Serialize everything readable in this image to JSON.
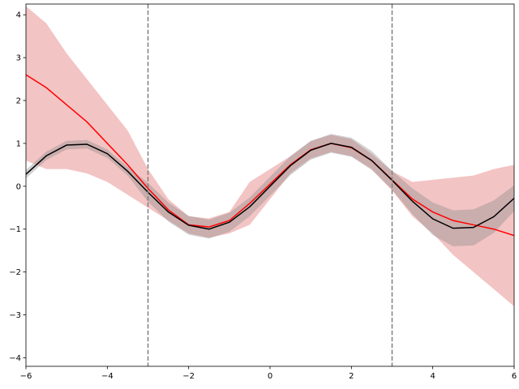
{
  "chart_data": {
    "type": "line",
    "x": [
      -6,
      -5.5,
      -5,
      -4.5,
      -4,
      -3.5,
      -3,
      -2.5,
      -2,
      -1.5,
      -1,
      -0.5,
      0,
      0.5,
      1,
      1.5,
      2,
      2.5,
      3,
      3.5,
      4,
      4.5,
      5,
      5.5,
      6
    ],
    "bands": [
      {
        "color": "#e88a8a",
        "opacity": 0.5,
        "upper": [
          4.2,
          3.8,
          3.1,
          2.5,
          1.9,
          1.3,
          0.4,
          -0.3,
          -0.7,
          -0.75,
          -0.6,
          0.1,
          0.4,
          0.7,
          1.05,
          1.2,
          1.1,
          0.75,
          0.35,
          0.1,
          0.15,
          0.2,
          0.25,
          0.4,
          0.5
        ],
        "lower": [
          0.6,
          0.4,
          0.4,
          0.3,
          0.1,
          -0.2,
          -0.5,
          -0.8,
          -1.1,
          -1.2,
          -1.1,
          -0.9,
          -0.3,
          0.3,
          0.65,
          0.8,
          0.7,
          0.4,
          -0.1,
          -0.7,
          -1.1,
          -1.6,
          -2.0,
          -2.4,
          -2.8
        ]
      },
      {
        "color": "#8c8c8c",
        "opacity": 0.4,
        "upper": [
          0.38,
          0.81,
          1.06,
          1.08,
          0.86,
          0.45,
          0.08,
          -0.38,
          -0.69,
          -0.78,
          -0.62,
          -0.26,
          0.22,
          0.7,
          1.06,
          1.22,
          1.13,
          0.82,
          0.36,
          -0.05,
          -0.38,
          -0.56,
          -0.54,
          -0.33,
          0.02
        ],
        "lower": [
          0.18,
          0.61,
          0.86,
          0.88,
          0.66,
          0.25,
          -0.36,
          -0.82,
          -1.13,
          -1.22,
          -1.06,
          -0.7,
          -0.22,
          0.26,
          0.62,
          0.78,
          0.69,
          0.38,
          -0.08,
          -0.65,
          -1.14,
          -1.4,
          -1.38,
          -1.09,
          -0.58
        ]
      }
    ],
    "series": [
      {
        "color": "#ff0000",
        "values": [
          2.6,
          2.3,
          1.9,
          1.5,
          1.0,
          0.5,
          -0.05,
          -0.55,
          -0.9,
          -0.95,
          -0.8,
          -0.4,
          0.05,
          0.5,
          0.85,
          1.0,
          0.9,
          0.6,
          0.15,
          -0.3,
          -0.6,
          -0.8,
          -0.9,
          -1.0,
          -1.15
        ]
      },
      {
        "color": "#000000",
        "values": [
          0.28,
          0.71,
          0.96,
          0.98,
          0.76,
          0.35,
          -0.14,
          -0.6,
          -0.91,
          -1.0,
          -0.84,
          -0.48,
          0,
          0.48,
          0.84,
          1.0,
          0.91,
          0.6,
          0.14,
          -0.35,
          -0.76,
          -0.98,
          -0.96,
          -0.71,
          -0.28
        ]
      }
    ],
    "vlines": [
      -3,
      3
    ],
    "vline_color": "#808080",
    "xlim": [
      -6,
      6
    ],
    "xticks": [
      {
        "value": -6,
        "label": "−6"
      },
      {
        "value": -4,
        "label": "−4"
      },
      {
        "value": -2,
        "label": "−2"
      },
      0,
      2,
      4,
      6
    ],
    "ylim": [
      -4.2,
      4.25
    ],
    "yticks": [
      {
        "value": -4,
        "label": "−4"
      },
      {
        "value": -3,
        "label": "−3"
      },
      {
        "value": -2,
        "label": "−2"
      },
      {
        "value": -1,
        "label": "−1"
      },
      0,
      1,
      2,
      3,
      4
    ]
  }
}
